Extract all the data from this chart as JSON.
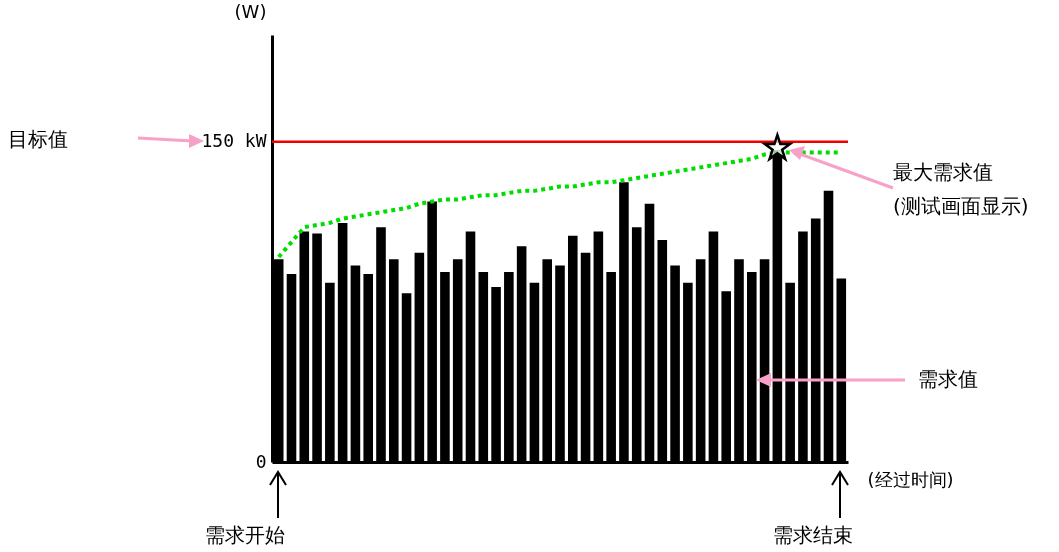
{
  "chart_data": {
    "type": "bar",
    "xlabel": "(经过时间)",
    "ylabel": "(W)",
    "categories": [
      null,
      null,
      null,
      null,
      null,
      null,
      null,
      null,
      null,
      null,
      null,
      null,
      null,
      null,
      null,
      null,
      null,
      null,
      null,
      null,
      null,
      null,
      null,
      null,
      null,
      null,
      null,
      null,
      null,
      null,
      null,
      null,
      null,
      null,
      null,
      null,
      null,
      null,
      null,
      null,
      null,
      null,
      null,
      null,
      null
    ],
    "series": [
      {
        "color": "#000000",
        "values": [
          95,
          88,
          108,
          107,
          84,
          112,
          92,
          88,
          110,
          95,
          79,
          98,
          122,
          89,
          95,
          108,
          89,
          82,
          89,
          101,
          84,
          95,
          92,
          106,
          98,
          108,
          89,
          131,
          110,
          121,
          104,
          92,
          84,
          95,
          108,
          80,
          95,
          89,
          95,
          146,
          84,
          108,
          114,
          127,
          86
        ]
      },
      {
        "type": "line",
        "color": "#00dd00",
        "line_style": "dotted",
        "values": [
          96,
          103,
          110,
          111,
          112,
          114,
          115,
          116,
          117,
          118,
          119,
          121,
          122,
          123,
          123,
          124,
          125,
          125,
          126,
          127,
          127,
          128,
          129,
          129,
          130,
          131,
          131,
          132,
          133,
          134,
          135,
          136,
          137,
          138,
          139,
          140,
          141,
          142,
          144,
          145,
          145,
          145,
          145,
          145,
          145
        ]
      },
      {
        "type": "scatter",
        "color": "#000000",
        "marker": "star",
        "values": [
          null,
          null,
          null,
          null,
          null,
          null,
          null,
          null,
          null,
          null,
          null,
          null,
          null,
          null,
          null,
          null,
          null,
          null,
          null,
          null,
          null,
          null,
          null,
          null,
          null,
          null,
          null,
          null,
          null,
          null,
          null,
          null,
          null,
          null,
          null,
          null,
          null,
          null,
          null,
          147,
          null,
          null,
          null,
          null,
          null
        ]
      }
    ],
    "ylim": [
      0,
      200
    ],
    "yticks": [
      0,
      {
        "value": 150,
        "label": "150 kW"
      }
    ],
    "ref_lines": [
      {
        "axis": "y",
        "value": 150,
        "color": "#ee0000"
      }
    ],
    "annotations": [
      "目标值",
      "最大需求值\n(测试画面显示)",
      "需求值",
      "需求开始",
      "需求结束"
    ],
    "grid": false
  }
}
